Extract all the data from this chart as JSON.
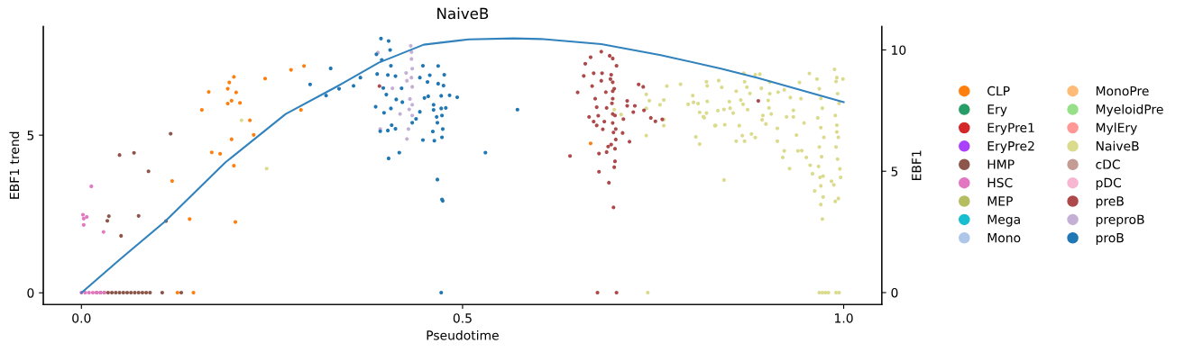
{
  "chart_data": {
    "type": "scatter",
    "title": "NaiveB",
    "xlabel": "Pseudotime",
    "ylabel": "EBF1 trend",
    "y2label": "EBF1",
    "xlim": [
      -0.05,
      1.05
    ],
    "xticks": [
      {
        "value": 0,
        "label": "0.0"
      },
      0.5,
      {
        "value": 1,
        "label": "1.0"
      }
    ],
    "ylim": [
      -0.37,
      8.45
    ],
    "yticks": [
      0,
      5
    ],
    "y2lim": [
      -0.49,
      10.97
    ],
    "y2ticks": [
      0,
      5,
      10
    ],
    "grid": false,
    "legend": "right",
    "marker": "circle",
    "series": [
      {
        "type": "line",
        "axis": "y",
        "marker": "none",
        "color": "#3182bd",
        "x": [
          0,
          0.05,
          0.11,
          0.189,
          0.268,
          0.331,
          0.343,
          0.39,
          0.449,
          0.508,
          0.567,
          0.603,
          0.682,
          0.76,
          0.839,
          0.887,
          1.0
        ],
        "values": [
          0,
          1.05,
          2.27,
          4.14,
          5.67,
          6.49,
          6.65,
          7.3,
          7.87,
          8.04,
          8.07,
          8.05,
          7.89,
          7.54,
          7.11,
          6.82,
          6.05
        ]
      },
      {
        "name": "CLP",
        "axis": "y2",
        "color": "#ff7f0e",
        "x": [
          0.167,
          0.192,
          0.194,
          0.2,
          0.203,
          0.197,
          0.192,
          0.208,
          0.158,
          0.221,
          0.226,
          0.197,
          0.171,
          0.182,
          0.2,
          0.119,
          0.142,
          0.202,
          0.241,
          0.275,
          0.292,
          0.288,
          0.126,
          0.147,
          0.668
        ],
        "values": [
          8.27,
          8.4,
          8.66,
          8.89,
          8.25,
          7.91,
          7.79,
          7.82,
          7.53,
          7.1,
          6.5,
          6.32,
          5.78,
          5.72,
          5.23,
          4.6,
          3.03,
          2.91,
          8.82,
          9.18,
          9.34,
          7.53,
          0,
          0,
          6.15
        ]
      },
      {
        "name": "Ery",
        "axis": "y2",
        "color": "#279e68"
      },
      {
        "name": "EryPre1",
        "axis": "y2",
        "color": "#d62728"
      },
      {
        "name": "EryPre2",
        "axis": "y2",
        "color": "#aa40fc"
      },
      {
        "name": "HMP",
        "axis": "y2",
        "color": "#8c564b",
        "x": [
          0.117,
          0.069,
          0.05,
          0.088,
          0.036,
          0.075,
          0.034,
          0.111,
          0.052,
          0.02,
          0.025,
          0.03,
          0.035,
          0.04,
          0.045,
          0.05,
          0.055,
          0.06,
          0.065,
          0.07,
          0.075,
          0.08,
          0.085,
          0.09,
          0.106,
          0.131
        ],
        "values": [
          6.55,
          5.76,
          5.67,
          5.0,
          3.15,
          3.16,
          2.96,
          2.95,
          2.34,
          0,
          0,
          0,
          0,
          0,
          0,
          0,
          0,
          0,
          0,
          0,
          0,
          0,
          0,
          0,
          0,
          0
        ]
      },
      {
        "name": "HSC",
        "axis": "y2",
        "color": "#e377c2",
        "x": [
          0.013,
          0.002,
          0.007,
          0.003,
          0.003,
          0.029,
          0.0,
          0.005,
          0.01,
          0.015,
          0.02,
          0.025,
          0.03
        ],
        "values": [
          4.38,
          3.21,
          3.12,
          3.05,
          2.79,
          2.5,
          0,
          0,
          0,
          0,
          0,
          0,
          0
        ]
      },
      {
        "name": "MEP",
        "axis": "y2",
        "color": "#b5bd61"
      },
      {
        "name": "Mega",
        "axis": "y2",
        "color": "#17becf"
      },
      {
        "name": "Mono",
        "axis": "y2",
        "color": "#aec7e8"
      },
      {
        "name": "MonoPre",
        "axis": "y2",
        "color": "#ffbb78"
      },
      {
        "name": "MyeloidPre",
        "axis": "y2",
        "color": "#98df8a"
      },
      {
        "name": "MylEry",
        "axis": "y2",
        "color": "#ff9896"
      },
      {
        "name": "NaiveB",
        "axis": "y2",
        "color": "#dbdb8d",
        "x": [
          0.21,
          0.243,
          0.699,
          0.708,
          0.741,
          0.745,
          0.741,
          0.764,
          0.759,
          0.764,
          0.764,
          0.741,
          0.768,
          0.786,
          0.796,
          0.802,
          0.803,
          0.809,
          0.811,
          0.821,
          0.82,
          0.816,
          0.817,
          0.806,
          0.811,
          0.82,
          0.821,
          0.836,
          0.831,
          0.835,
          0.743,
          0.84,
          0.844,
          0.832,
          0.843,
          0.859,
          0.867,
          0.87,
          0.879,
          0.884,
          0.863,
          0.874,
          0.868,
          0.865,
          0.85,
          0.843,
          0.851,
          0.855,
          0.859,
          0.87,
          0.873,
          0.877,
          0.869,
          0.884,
          0.89,
          0.892,
          0.903,
          0.903,
          0.901,
          0.902,
          0.905,
          0.894,
          0.893,
          0.898,
          0.913,
          0.913,
          0.92,
          0.922,
          0.929,
          0.914,
          0.922,
          0.93,
          0.934,
          0.925,
          0.934,
          0.942,
          0.955,
          0.94,
          0.945,
          0.951,
          0.956,
          0.959,
          0.962,
          0.97,
          0.972,
          0.973,
          0.969,
          0.991,
          0.999,
          0.989,
          0.993,
          0.987,
          0.996,
          0.984,
          0.991,
          0.944,
          0.948,
          0.938,
          0.965,
          0.968,
          0.97,
          0.972,
          0.966,
          0.97,
          0.974,
          0.968,
          0.971,
          0.967,
          0.973,
          0.97,
          0.988,
          0.99,
          0.992,
          0.994,
          0.989,
          0.991,
          0.993,
          0.99,
          0.992,
          0.995,
          0.968,
          0.972,
          0.976,
          0.98,
          0.99,
          0.994
        ],
        "values": [
          7.1,
          5.11,
          7.54,
          7.34,
          8.17,
          7.91,
          7.59,
          7.94,
          7.74,
          7.13,
          6.88,
          6.47,
          8.51,
          8.59,
          7.76,
          8.12,
          7.84,
          7.79,
          7.43,
          7.88,
          7.4,
          7.25,
          7.21,
          6.42,
          6.12,
          8.69,
          8.52,
          8.74,
          6.88,
          7.5,
          0,
          8.46,
          6.92,
          6.89,
          4.64,
          6.24,
          6.47,
          6.24,
          6.54,
          6.39,
          6.88,
          7.54,
          7.76,
          7.94,
          7.87,
          7.55,
          7.6,
          7.4,
          8.3,
          8.69,
          8.47,
          8.21,
          9.04,
          8.98,
          9.0,
          8.42,
          8.67,
          8.2,
          7.92,
          7.61,
          7.36,
          7.3,
          7.12,
          6.95,
          6.77,
          6.24,
          5.57,
          5.84,
          5.11,
          8.26,
          8.36,
          8.04,
          7.51,
          7.24,
          7.24,
          8.66,
          9.03,
          5.84,
          5.85,
          5.57,
          5.25,
          4.9,
          4.19,
          3.63,
          3.03,
          3.94,
          4.75,
          8.86,
          8.8,
          3.76,
          3.88,
          4.44,
          4.75,
          4.59,
          6.62,
          7.99,
          6.99,
          6.49,
          8.8,
          8.4,
          8.0,
          7.6,
          7.2,
          6.8,
          6.4,
          6.0,
          5.6,
          5.2,
          4.8,
          4.4,
          9.2,
          8.7,
          8.2,
          7.8,
          7.3,
          6.9,
          6.4,
          6.0,
          5.5,
          5.1,
          0,
          0,
          0,
          0,
          0,
          0
        ]
      },
      {
        "name": "cDC",
        "axis": "y2",
        "color": "#c49c94"
      },
      {
        "name": "pDC",
        "axis": "y2",
        "color": "#f7b6d2"
      },
      {
        "name": "preB",
        "axis": "y2",
        "color": "#ad494a",
        "x": [
          0.391,
          0.682,
          0.668,
          0.693,
          0.697,
          0.661,
          0.702,
          0.659,
          0.672,
          0.683,
          0.695,
          0.697,
          0.682,
          0.651,
          0.67,
          0.688,
          0.697,
          0.697,
          0.674,
          0.676,
          0.689,
          0.697,
          0.666,
          0.678,
          0.686,
          0.697,
          0.672,
          0.684,
          0.676,
          0.701,
          0.71,
          0.719,
          0.701,
          0.691,
          0.7,
          0.679,
          0.689,
          0.641,
          0.7,
          0.699,
          0.679,
          0.692,
          0.698,
          0.677,
          0.702,
          0.731,
          0.737,
          0.716,
          0.716,
          0.726,
          0.724,
          0.738,
          0.747,
          0.753,
          0.762,
          0.711,
          0.888,
          0.694,
          0.699,
          0.696,
          0.7,
          0.698,
          0.695
        ],
        "values": [
          8.51,
          9.93,
          9.7,
          9.76,
          9.65,
          9.43,
          9.35,
          8.93,
          9.04,
          9.04,
          8.98,
          8.67,
          8.73,
          8.25,
          8.51,
          8.26,
          8.3,
          7.99,
          7.99,
          7.64,
          7.61,
          7.36,
          7.24,
          7.29,
          7.05,
          6.99,
          7.05,
          6.73,
          6.89,
          6.74,
          6.58,
          6.22,
          6.31,
          6.02,
          5.93,
          5.73,
          5.79,
          5.63,
          5.41,
          5.17,
          4.98,
          4.53,
          3.51,
          0,
          0,
          8.58,
          8.48,
          7.9,
          7.7,
          7.7,
          7.44,
          7.51,
          7.2,
          7.06,
          7.14,
          7.15,
          7.9,
          8.8,
          8.4,
          7.8,
          7.3,
          6.6,
          6.1
        ]
      },
      {
        "name": "preproB",
        "axis": "y2",
        "color": "#c5b0d5",
        "x": [
          0.432,
          0.433,
          0.433,
          0.434,
          0.433,
          0.426,
          0.427,
          0.434,
          0.431,
          0.434,
          0.43,
          0.434,
          0.418,
          0.429,
          0.427,
          0.389,
          0.392,
          0.408
        ],
        "values": [
          10.17,
          9.91,
          9.63,
          9.23,
          8.86,
          9.05,
          8.73,
          8.48,
          7.98,
          7.74,
          7.55,
          7.3,
          7.36,
          6.74,
          6.33,
          9.89,
          6.74,
          8.42
        ]
      },
      {
        "name": "proB",
        "axis": "y2",
        "color": "#1f77b4",
        "x": [
          0.393,
          0.403,
          0.405,
          0.387,
          0.394,
          0.338,
          0.357,
          0.366,
          0.388,
          0.406,
          0.448,
          0.468,
          0.402,
          0.412,
          0.396,
          0.4,
          0.386,
          0.397,
          0.406,
          0.413,
          0.42,
          0.421,
          0.407,
          0.412,
          0.402,
          0.392,
          0.417,
          0.403,
          0.434,
          0.439,
          0.448,
          0.463,
          0.444,
          0.45,
          0.455,
          0.444,
          0.457,
          0.454,
          0.468,
          0.476,
          0.475,
          0.472,
          0.483,
          0.493,
          0.462,
          0.462,
          0.472,
          0.478,
          0.466,
          0.473,
          0.467,
          0.474,
          0.461,
          0.473,
          0.53,
          0.467,
          0.473,
          0.474,
          0.472,
          0.327,
          0.3,
          0.321,
          0.572
        ],
        "values": [
          10.47,
          10.37,
          10.0,
          9.82,
          9.59,
          8.4,
          8.52,
          8.86,
          9.01,
          9.35,
          9.35,
          9.34,
          8.97,
          8.92,
          8.43,
          8.16,
          7.66,
          7.41,
          7.59,
          7.96,
          8.42,
          7.85,
          6.9,
          6.75,
          6.68,
          6.65,
          5.77,
          5.53,
          7.0,
          7.16,
          6.29,
          6.26,
          7.45,
          8.02,
          8.09,
          8.86,
          8.96,
          8.68,
          8.61,
          8.98,
          8.53,
          8.11,
          8.13,
          8.05,
          7.74,
          7.53,
          7.59,
          7.61,
          7.24,
          7.3,
          7.0,
          6.74,
          6.64,
          6.4,
          5.77,
          4.66,
          3.84,
          3.78,
          0,
          9.24,
          8.58,
          8.12,
          7.54
        ]
      }
    ]
  }
}
